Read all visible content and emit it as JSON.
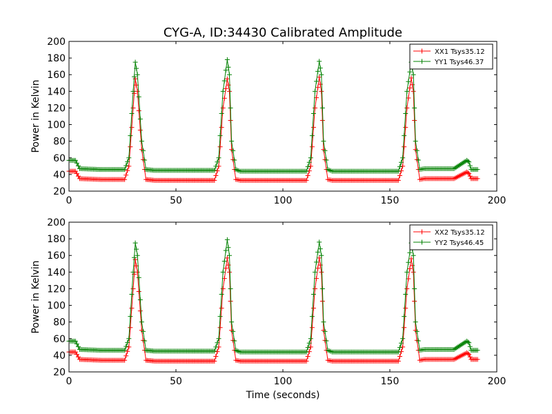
{
  "figure": {
    "title": "CYG-A, ID:34430 Calibrated Amplitude"
  },
  "chart_data": [
    {
      "type": "line",
      "title": "CYG-A, ID:34430 Calibrated Amplitude",
      "xlabel": "",
      "ylabel": "Power in Kelvin",
      "xlim": [
        0,
        200
      ],
      "ylim": [
        20,
        200
      ],
      "xticks": [
        0,
        50,
        100,
        150,
        200
      ],
      "yticks": [
        20,
        40,
        60,
        80,
        100,
        120,
        140,
        160,
        180,
        200
      ],
      "grid": false,
      "legend_position": "top-right",
      "marker": "+",
      "series": [
        {
          "name": "XX1 Tsys35.12",
          "color": "#ff0000",
          "x": [
            0,
            3,
            5,
            15,
            26,
            28,
            30,
            31,
            32,
            34,
            36,
            40,
            55,
            68,
            70,
            72,
            74,
            75,
            76,
            78,
            80,
            100,
            111,
            113,
            115,
            117,
            118,
            119,
            121,
            123,
            140,
            154,
            156,
            158,
            160,
            161,
            162,
            164,
            166,
            180,
            186,
            187,
            188,
            191
          ],
          "y": [
            44,
            44,
            35,
            34,
            34,
            50,
            120,
            155,
            140,
            70,
            34,
            33,
            33,
            33,
            50,
            120,
            155,
            140,
            70,
            34,
            33,
            33,
            33,
            50,
            120,
            157,
            140,
            70,
            34,
            33,
            33,
            33,
            50,
            120,
            156,
            140,
            70,
            34,
            35,
            35,
            43,
            41,
            35,
            35
          ]
        },
        {
          "name": "YY1 Tsys46.37",
          "color": "#008000",
          "x": [
            0,
            3,
            5,
            15,
            26,
            28,
            30,
            31,
            32,
            34,
            36,
            40,
            55,
            68,
            70,
            72,
            74,
            75,
            76,
            78,
            80,
            100,
            111,
            113,
            115,
            117,
            118,
            119,
            121,
            123,
            140,
            154,
            156,
            158,
            160,
            161,
            162,
            164,
            166,
            180,
            186,
            187,
            188,
            191
          ],
          "y": [
            57,
            57,
            47,
            46,
            46,
            60,
            140,
            175,
            160,
            80,
            46,
            45,
            45,
            45,
            60,
            140,
            178,
            160,
            80,
            46,
            44,
            44,
            44,
            60,
            140,
            176,
            160,
            80,
            46,
            44,
            44,
            44,
            60,
            140,
            175,
            160,
            80,
            46,
            47,
            47,
            57,
            55,
            46,
            46
          ]
        }
      ]
    },
    {
      "type": "line",
      "title": "",
      "xlabel": "Time (seconds)",
      "ylabel": "Power in Kelvin",
      "xlim": [
        0,
        200
      ],
      "ylim": [
        20,
        200
      ],
      "xticks": [
        0,
        50,
        100,
        150,
        200
      ],
      "yticks": [
        20,
        40,
        60,
        80,
        100,
        120,
        140,
        160,
        180,
        200
      ],
      "grid": false,
      "legend_position": "top-right",
      "marker": "+",
      "series": [
        {
          "name": "XX2 Tsys35.12",
          "color": "#ff0000",
          "x": [
            0,
            3,
            5,
            15,
            26,
            28,
            30,
            31,
            32,
            34,
            36,
            40,
            55,
            68,
            70,
            72,
            74,
            75,
            76,
            78,
            80,
            100,
            111,
            113,
            115,
            117,
            118,
            119,
            121,
            123,
            140,
            154,
            156,
            158,
            160,
            161,
            162,
            164,
            166,
            180,
            186,
            187,
            188,
            191
          ],
          "y": [
            44,
            44,
            35,
            34,
            34,
            50,
            120,
            155,
            140,
            70,
            34,
            33,
            33,
            33,
            50,
            120,
            157,
            140,
            70,
            34,
            33,
            33,
            33,
            50,
            120,
            157,
            140,
            70,
            34,
            33,
            33,
            33,
            50,
            120,
            156,
            140,
            70,
            34,
            35,
            35,
            43,
            41,
            35,
            35
          ]
        },
        {
          "name": "YY2 Tsys46.45",
          "color": "#008000",
          "x": [
            0,
            3,
            5,
            15,
            26,
            28,
            30,
            31,
            32,
            34,
            36,
            40,
            55,
            68,
            70,
            72,
            74,
            75,
            76,
            78,
            80,
            100,
            111,
            113,
            115,
            117,
            118,
            119,
            121,
            123,
            140,
            154,
            156,
            158,
            160,
            161,
            162,
            164,
            166,
            180,
            186,
            187,
            188,
            191
          ],
          "y": [
            57,
            57,
            47,
            46,
            46,
            60,
            140,
            175,
            160,
            80,
            46,
            45,
            45,
            45,
            60,
            140,
            179,
            160,
            80,
            46,
            44,
            44,
            44,
            60,
            140,
            176,
            160,
            80,
            46,
            44,
            44,
            44,
            60,
            140,
            175,
            160,
            80,
            46,
            47,
            47,
            57,
            55,
            46,
            46
          ]
        }
      ]
    }
  ]
}
